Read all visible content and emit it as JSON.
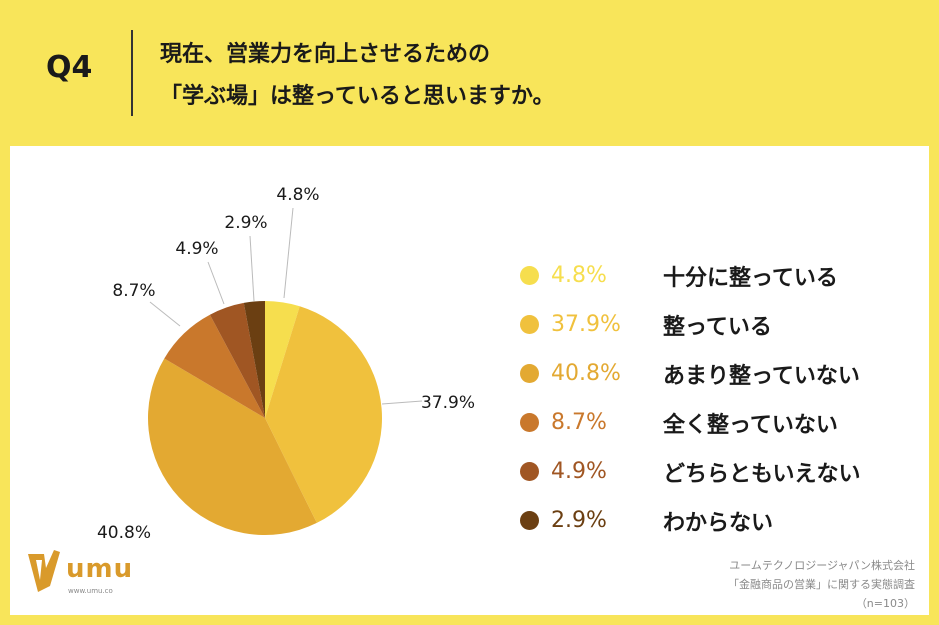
{
  "header": {
    "q_label": "Q4",
    "title_line1": "現在、営業力を向上させるための",
    "title_line2": "「学ぶ場」は整っていると思いますか。"
  },
  "chart_data": {
    "type": "pie",
    "categories": [
      "十分に整っている",
      "整っている",
      "あまり整っていない",
      "全く整っていない",
      "どちらともいえない",
      "わからない"
    ],
    "values": [
      4.8,
      37.9,
      40.8,
      8.7,
      4.9,
      2.9
    ],
    "value_labels": [
      "4.8%",
      "37.9%",
      "40.8%",
      "8.7%",
      "4.9%",
      "2.9%"
    ],
    "colors": [
      "#f6de4e",
      "#f0c13d",
      "#e3a932",
      "#c9782c",
      "#a05623",
      "#6b3f12"
    ],
    "start": "top, clockwise",
    "legend_position": "right"
  },
  "logo": {
    "text": "umu",
    "url": "www.umu.co"
  },
  "footer": {
    "company": "ユームテクノロジージャパン株式会社",
    "survey": "「金融商品の営業」に関する実態調査",
    "sample": "（n=103）"
  }
}
